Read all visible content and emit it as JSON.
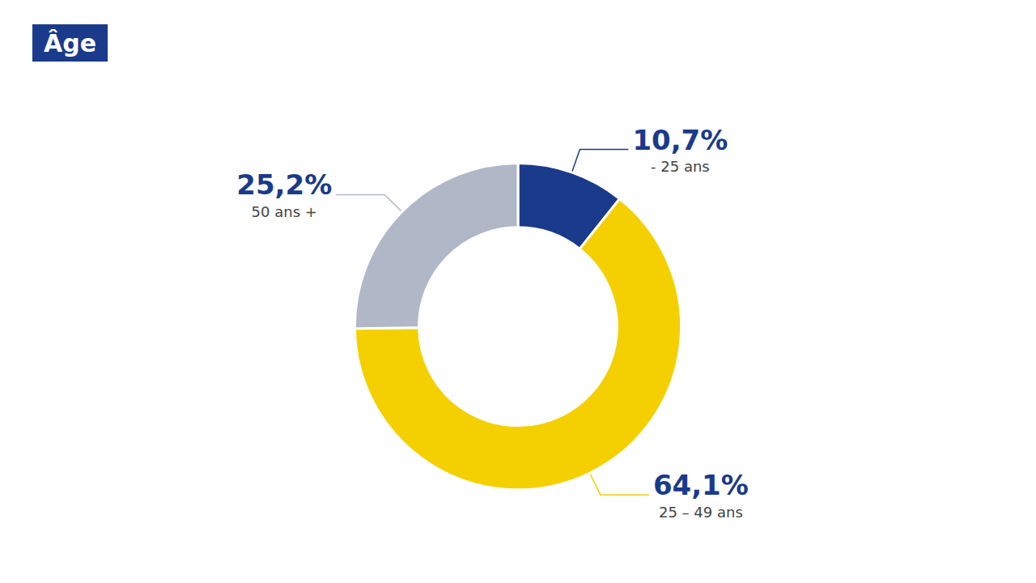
{
  "chart_data": {
    "type": "pie",
    "title": "Âge",
    "categories": [
      "- 25 ans",
      "25 – 49 ans",
      "50 ans +"
    ],
    "values": [
      10.7,
      64.1,
      25.2
    ],
    "value_labels": [
      "10,7%",
      "64,1%",
      "25,2%"
    ],
    "colors": [
      "#1a3a8c",
      "#f5d000",
      "#b0b8c8"
    ],
    "data_labels": true
  }
}
